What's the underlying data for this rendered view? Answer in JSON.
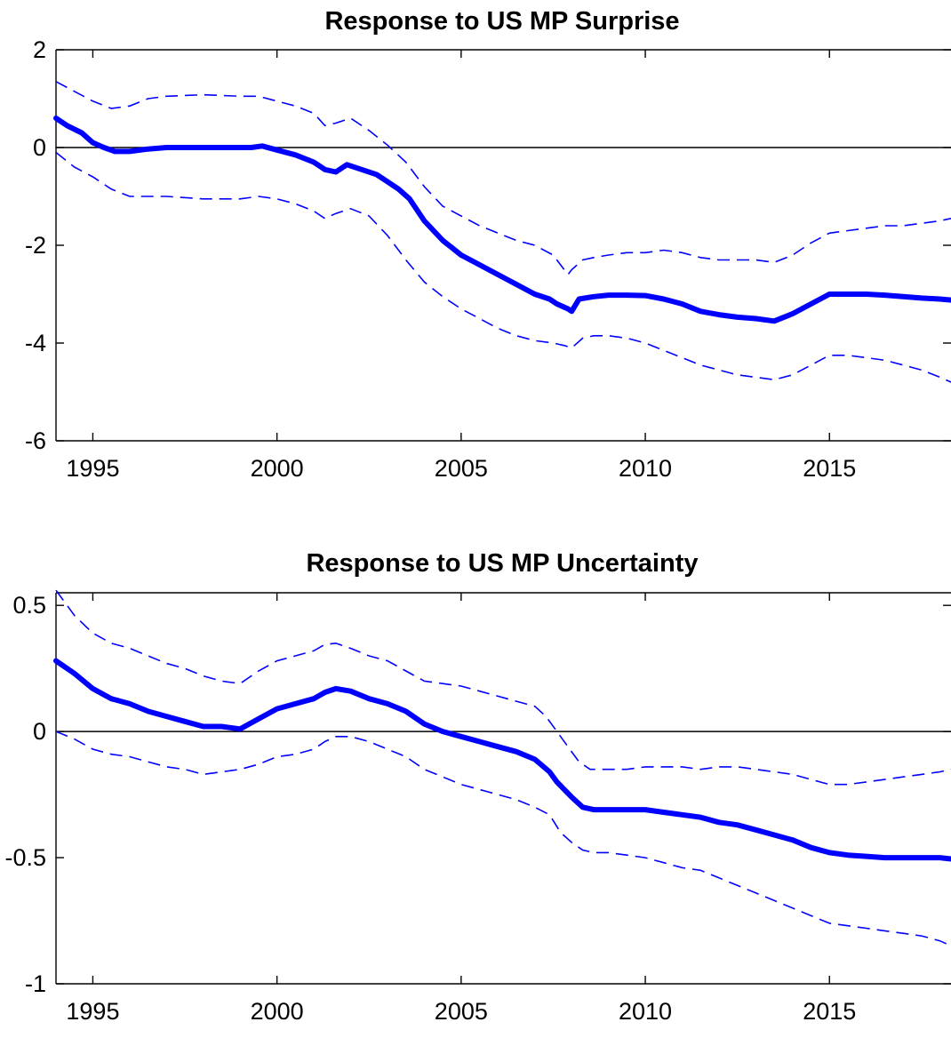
{
  "chart_data": [
    {
      "type": "line",
      "title": "Response to US MP Surprise",
      "xlabel": "",
      "ylabel": "",
      "xlim": [
        1994,
        2018.3
      ],
      "ylim": [
        -6,
        2
      ],
      "x_ticks": [
        1995,
        2000,
        2005,
        2010,
        2015
      ],
      "y_ticks": [
        -6,
        -4,
        -2,
        0,
        2
      ],
      "y_tick_labels": [
        "-6",
        "-4",
        "-2",
        "0",
        "2"
      ],
      "zero_line": true,
      "grid": false,
      "legend": "none",
      "colors": {
        "median": "#0000ff",
        "bands": "#0000ff",
        "axes": "#000000"
      },
      "series": [
        {
          "role": "median",
          "x": [
            1994.0,
            1994.3,
            1994.7,
            1995.0,
            1995.3,
            1995.6,
            1996.0,
            1996.5,
            1997.0,
            1997.5,
            1998.0,
            1998.5,
            1999.0,
            1999.3,
            1999.6,
            2000.0,
            2000.5,
            2001.0,
            2001.3,
            2001.6,
            2001.9,
            2002.3,
            2002.7,
            2003.0,
            2003.3,
            2003.6,
            2004.0,
            2004.5,
            2005.0,
            2005.5,
            2006.0,
            2006.5,
            2007.0,
            2007.4,
            2007.6,
            2007.9,
            2008.0,
            2008.2,
            2008.6,
            2009.0,
            2009.5,
            2010.0,
            2010.5,
            2011.0,
            2011.5,
            2012.0,
            2012.5,
            2013.0,
            2013.5,
            2014.0,
            2014.5,
            2015.0,
            2015.5,
            2016.0,
            2016.5,
            2017.0,
            2017.5,
            2018.0,
            2018.3
          ],
          "y": [
            0.6,
            0.45,
            0.3,
            0.1,
            0.0,
            -0.08,
            -0.08,
            -0.03,
            0.0,
            0.0,
            0.0,
            0.0,
            0.0,
            0.0,
            0.03,
            -0.05,
            -0.15,
            -0.3,
            -0.45,
            -0.5,
            -0.35,
            -0.45,
            -0.55,
            -0.7,
            -0.85,
            -1.05,
            -1.5,
            -1.9,
            -2.2,
            -2.4,
            -2.6,
            -2.8,
            -3.0,
            -3.1,
            -3.2,
            -3.3,
            -3.35,
            -3.1,
            -3.05,
            -3.02,
            -3.02,
            -3.03,
            -3.1,
            -3.2,
            -3.35,
            -3.42,
            -3.47,
            -3.5,
            -3.55,
            -3.4,
            -3.2,
            -3.0,
            -3.0,
            -3.0,
            -3.02,
            -3.05,
            -3.08,
            -3.1,
            -3.12
          ]
        },
        {
          "role": "upper-band",
          "x": [
            1994.0,
            1994.5,
            1995.0,
            1995.5,
            1996.0,
            1996.5,
            1997.0,
            1998.0,
            1999.0,
            1999.5,
            2000.0,
            2000.5,
            2001.0,
            2001.3,
            2001.6,
            2002.0,
            2002.5,
            2003.0,
            2003.5,
            2004.0,
            2004.5,
            2005.0,
            2005.5,
            2006.0,
            2006.5,
            2007.0,
            2007.5,
            2007.9,
            2008.0,
            2008.3,
            2008.6,
            2009.0,
            2009.5,
            2010.0,
            2010.5,
            2011.0,
            2011.5,
            2012.0,
            2012.5,
            2013.0,
            2013.5,
            2014.0,
            2014.5,
            2015.0,
            2015.5,
            2016.0,
            2016.5,
            2017.0,
            2017.5,
            2018.0,
            2018.3
          ],
          "y": [
            1.35,
            1.15,
            0.95,
            0.8,
            0.85,
            1.0,
            1.05,
            1.08,
            1.05,
            1.05,
            0.95,
            0.85,
            0.7,
            0.45,
            0.5,
            0.6,
            0.35,
            0.05,
            -0.3,
            -0.8,
            -1.2,
            -1.4,
            -1.6,
            -1.75,
            -1.9,
            -2.0,
            -2.2,
            -2.6,
            -2.5,
            -2.3,
            -2.25,
            -2.2,
            -2.15,
            -2.15,
            -2.1,
            -2.15,
            -2.25,
            -2.3,
            -2.3,
            -2.3,
            -2.35,
            -2.2,
            -1.95,
            -1.75,
            -1.7,
            -1.65,
            -1.6,
            -1.6,
            -1.55,
            -1.5,
            -1.45
          ]
        },
        {
          "role": "lower-band",
          "x": [
            1994.0,
            1994.5,
            1995.0,
            1995.5,
            1996.0,
            1996.5,
            1997.0,
            1998.0,
            1999.0,
            1999.5,
            2000.0,
            2000.5,
            2001.0,
            2001.3,
            2001.6,
            2002.0,
            2002.5,
            2003.0,
            2003.5,
            2004.0,
            2004.5,
            2005.0,
            2005.5,
            2006.0,
            2006.5,
            2007.0,
            2007.5,
            2007.8,
            2008.0,
            2008.3,
            2008.6,
            2009.0,
            2009.5,
            2010.0,
            2010.5,
            2011.0,
            2011.5,
            2012.0,
            2012.5,
            2013.0,
            2013.5,
            2014.0,
            2014.5,
            2015.0,
            2015.5,
            2016.0,
            2016.5,
            2017.0,
            2017.5,
            2018.0,
            2018.3
          ],
          "y": [
            -0.1,
            -0.4,
            -0.6,
            -0.85,
            -1.0,
            -1.0,
            -1.0,
            -1.05,
            -1.05,
            -1.0,
            -1.05,
            -1.15,
            -1.3,
            -1.45,
            -1.35,
            -1.25,
            -1.4,
            -1.8,
            -2.3,
            -2.75,
            -3.05,
            -3.3,
            -3.5,
            -3.7,
            -3.85,
            -3.95,
            -4.0,
            -4.05,
            -4.1,
            -3.9,
            -3.85,
            -3.85,
            -3.9,
            -4.0,
            -4.15,
            -4.3,
            -4.45,
            -4.55,
            -4.65,
            -4.7,
            -4.75,
            -4.65,
            -4.45,
            -4.25,
            -4.25,
            -4.3,
            -4.35,
            -4.45,
            -4.55,
            -4.7,
            -4.8
          ]
        }
      ]
    },
    {
      "type": "line",
      "title": "Response to US MP Uncertainty",
      "xlabel": "",
      "ylabel": "",
      "xlim": [
        1994,
        2018.3
      ],
      "ylim": [
        -1,
        0.55
      ],
      "x_ticks": [
        1995,
        2000,
        2005,
        2010,
        2015
      ],
      "y_ticks": [
        -1,
        -0.5,
        0,
        0.5
      ],
      "y_tick_labels": [
        "-1",
        "-0.5",
        "0",
        "0.5"
      ],
      "zero_line": true,
      "grid": false,
      "legend": "none",
      "colors": {
        "median": "#0000ff",
        "bands": "#0000ff",
        "axes": "#000000"
      },
      "series": [
        {
          "role": "median",
          "x": [
            1994.0,
            1994.5,
            1995.0,
            1995.5,
            1996.0,
            1996.5,
            1997.0,
            1997.5,
            1998.0,
            1998.5,
            1999.0,
            1999.5,
            2000.0,
            2000.5,
            2001.0,
            2001.3,
            2001.6,
            2002.0,
            2002.5,
            2003.0,
            2003.5,
            2004.0,
            2004.5,
            2005.0,
            2005.5,
            2006.0,
            2006.5,
            2007.0,
            2007.4,
            2007.6,
            2008.0,
            2008.3,
            2008.6,
            2009.0,
            2009.5,
            2010.0,
            2010.5,
            2011.0,
            2011.5,
            2012.0,
            2012.5,
            2013.0,
            2013.5,
            2014.0,
            2014.5,
            2015.0,
            2015.5,
            2016.0,
            2016.5,
            2017.0,
            2017.5,
            2018.0,
            2018.3
          ],
          "y": [
            0.28,
            0.23,
            0.17,
            0.13,
            0.11,
            0.08,
            0.06,
            0.04,
            0.02,
            0.02,
            0.01,
            0.05,
            0.09,
            0.11,
            0.13,
            0.155,
            0.17,
            0.16,
            0.13,
            0.11,
            0.08,
            0.03,
            0.0,
            -0.02,
            -0.04,
            -0.06,
            -0.08,
            -0.11,
            -0.16,
            -0.2,
            -0.26,
            -0.3,
            -0.31,
            -0.31,
            -0.31,
            -0.31,
            -0.32,
            -0.33,
            -0.34,
            -0.36,
            -0.37,
            -0.39,
            -0.41,
            -0.43,
            -0.46,
            -0.48,
            -0.49,
            -0.495,
            -0.5,
            -0.5,
            -0.5,
            -0.5,
            -0.505
          ]
        },
        {
          "role": "upper-band",
          "x": [
            1994.0,
            1994.5,
            1995.0,
            1995.5,
            1996.0,
            1996.5,
            1997.0,
            1997.5,
            1998.0,
            1998.5,
            1999.0,
            1999.5,
            2000.0,
            2000.5,
            2001.0,
            2001.3,
            2001.6,
            2002.0,
            2002.5,
            2003.0,
            2003.5,
            2004.0,
            2004.5,
            2005.0,
            2005.5,
            2006.0,
            2006.5,
            2007.0,
            2007.3,
            2007.6,
            2007.9,
            2008.2,
            2008.5,
            2009.0,
            2009.5,
            2010.0,
            2010.5,
            2011.0,
            2011.5,
            2012.0,
            2012.5,
            2013.0,
            2013.5,
            2014.0,
            2014.5,
            2015.0,
            2015.5,
            2016.0,
            2016.5,
            2017.0,
            2017.5,
            2018.0,
            2018.3
          ],
          "y": [
            0.56,
            0.46,
            0.39,
            0.35,
            0.33,
            0.3,
            0.27,
            0.25,
            0.22,
            0.2,
            0.19,
            0.24,
            0.28,
            0.3,
            0.32,
            0.345,
            0.35,
            0.33,
            0.3,
            0.28,
            0.24,
            0.2,
            0.19,
            0.18,
            0.16,
            0.14,
            0.12,
            0.1,
            0.06,
            0.0,
            -0.06,
            -0.12,
            -0.15,
            -0.15,
            -0.15,
            -0.14,
            -0.14,
            -0.14,
            -0.15,
            -0.14,
            -0.14,
            -0.15,
            -0.16,
            -0.17,
            -0.19,
            -0.21,
            -0.21,
            -0.2,
            -0.19,
            -0.18,
            -0.17,
            -0.16,
            -0.15
          ]
        },
        {
          "role": "lower-band",
          "x": [
            1994.0,
            1994.5,
            1995.0,
            1995.5,
            1996.0,
            1996.5,
            1997.0,
            1997.5,
            1998.0,
            1998.5,
            1999.0,
            1999.5,
            2000.0,
            2000.5,
            2001.0,
            2001.3,
            2001.6,
            2002.0,
            2002.5,
            2003.0,
            2003.5,
            2004.0,
            2004.5,
            2005.0,
            2005.5,
            2006.0,
            2006.5,
            2007.0,
            2007.4,
            2007.7,
            2008.0,
            2008.3,
            2008.6,
            2009.0,
            2009.5,
            2010.0,
            2010.5,
            2011.0,
            2011.5,
            2012.0,
            2012.5,
            2013.0,
            2013.5,
            2014.0,
            2014.5,
            2015.0,
            2015.5,
            2016.0,
            2016.5,
            2017.0,
            2017.5,
            2018.0,
            2018.3
          ],
          "y": [
            0.0,
            -0.03,
            -0.07,
            -0.09,
            -0.1,
            -0.12,
            -0.14,
            -0.15,
            -0.17,
            -0.16,
            -0.15,
            -0.13,
            -0.1,
            -0.09,
            -0.07,
            -0.04,
            -0.02,
            -0.02,
            -0.04,
            -0.07,
            -0.1,
            -0.15,
            -0.18,
            -0.21,
            -0.23,
            -0.25,
            -0.27,
            -0.3,
            -0.33,
            -0.4,
            -0.44,
            -0.47,
            -0.48,
            -0.48,
            -0.49,
            -0.5,
            -0.52,
            -0.54,
            -0.55,
            -0.58,
            -0.61,
            -0.64,
            -0.67,
            -0.7,
            -0.73,
            -0.76,
            -0.77,
            -0.78,
            -0.79,
            -0.8,
            -0.81,
            -0.83,
            -0.85
          ]
        }
      ]
    }
  ]
}
